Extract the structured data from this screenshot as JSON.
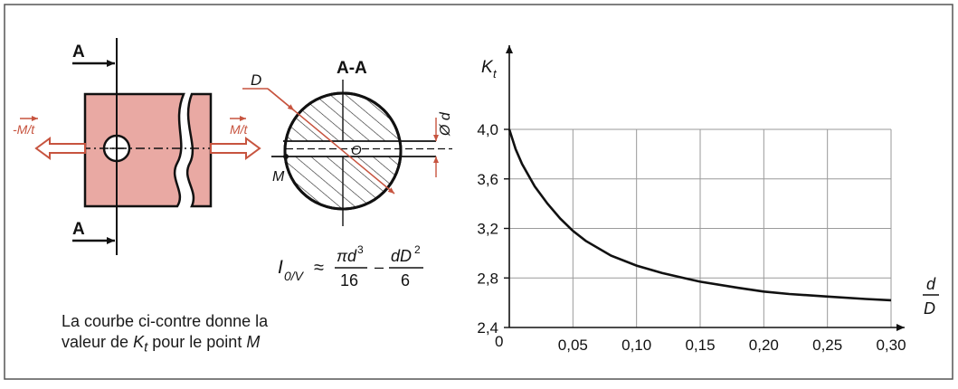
{
  "colors": {
    "part_fill": "#e9a9a3",
    "force_arrow": "#c7543f",
    "ink": "#111111",
    "grid": "#9a9a9a",
    "frame": "#555555"
  },
  "specimen": {
    "section_top_label": "A",
    "section_bottom_label": "A",
    "force_left_label": "-M/t",
    "force_right_label": "M/t"
  },
  "cross_section": {
    "title": "A-A",
    "outer_diameter_label": "D",
    "hole_diameter_label": "Ø d",
    "center_label": "O",
    "point_label": "M"
  },
  "formula": {
    "lhs": "I",
    "lhs_sub": "0/V",
    "approx": "≈",
    "term1_num": "πd",
    "term1_num_exp": "3",
    "term1_den": "16",
    "minus": "–",
    "term2_num": "dD",
    "term2_num_exp": "2",
    "term2_den": "6"
  },
  "caption": {
    "line1": "La courbe ci-contre donne la",
    "line2_prefix": "valeur de ",
    "line2_symbol": "K",
    "line2_symbol_sub": "t",
    "line2_suffix": " pour le point ",
    "line2_point": "M"
  },
  "chart_data": {
    "type": "line",
    "ylabel": "K",
    "ylabel_sub": "t",
    "xlabel_num": "d",
    "xlabel_den": "D",
    "origin_label": "0",
    "xlim": [
      0,
      0.3
    ],
    "ylim": [
      2.4,
      4.0
    ],
    "x_ticks": [
      "0,05",
      "0,10",
      "0,15",
      "0,20",
      "0,25",
      "0,30"
    ],
    "y_ticks": [
      "2,4",
      "2,8",
      "3,2",
      "3,6",
      "4,0"
    ],
    "grid": true,
    "series": [
      {
        "x": [
          0,
          0.005,
          0.01,
          0.02,
          0.03,
          0.04,
          0.05,
          0.06,
          0.08,
          0.1,
          0.12,
          0.15,
          0.18,
          0.2,
          0.22,
          0.25,
          0.28,
          0.3
        ],
        "y": [
          4.0,
          3.84,
          3.72,
          3.54,
          3.4,
          3.28,
          3.18,
          3.1,
          2.98,
          2.9,
          2.84,
          2.77,
          2.72,
          2.69,
          2.67,
          2.65,
          2.63,
          2.62
        ]
      }
    ]
  }
}
